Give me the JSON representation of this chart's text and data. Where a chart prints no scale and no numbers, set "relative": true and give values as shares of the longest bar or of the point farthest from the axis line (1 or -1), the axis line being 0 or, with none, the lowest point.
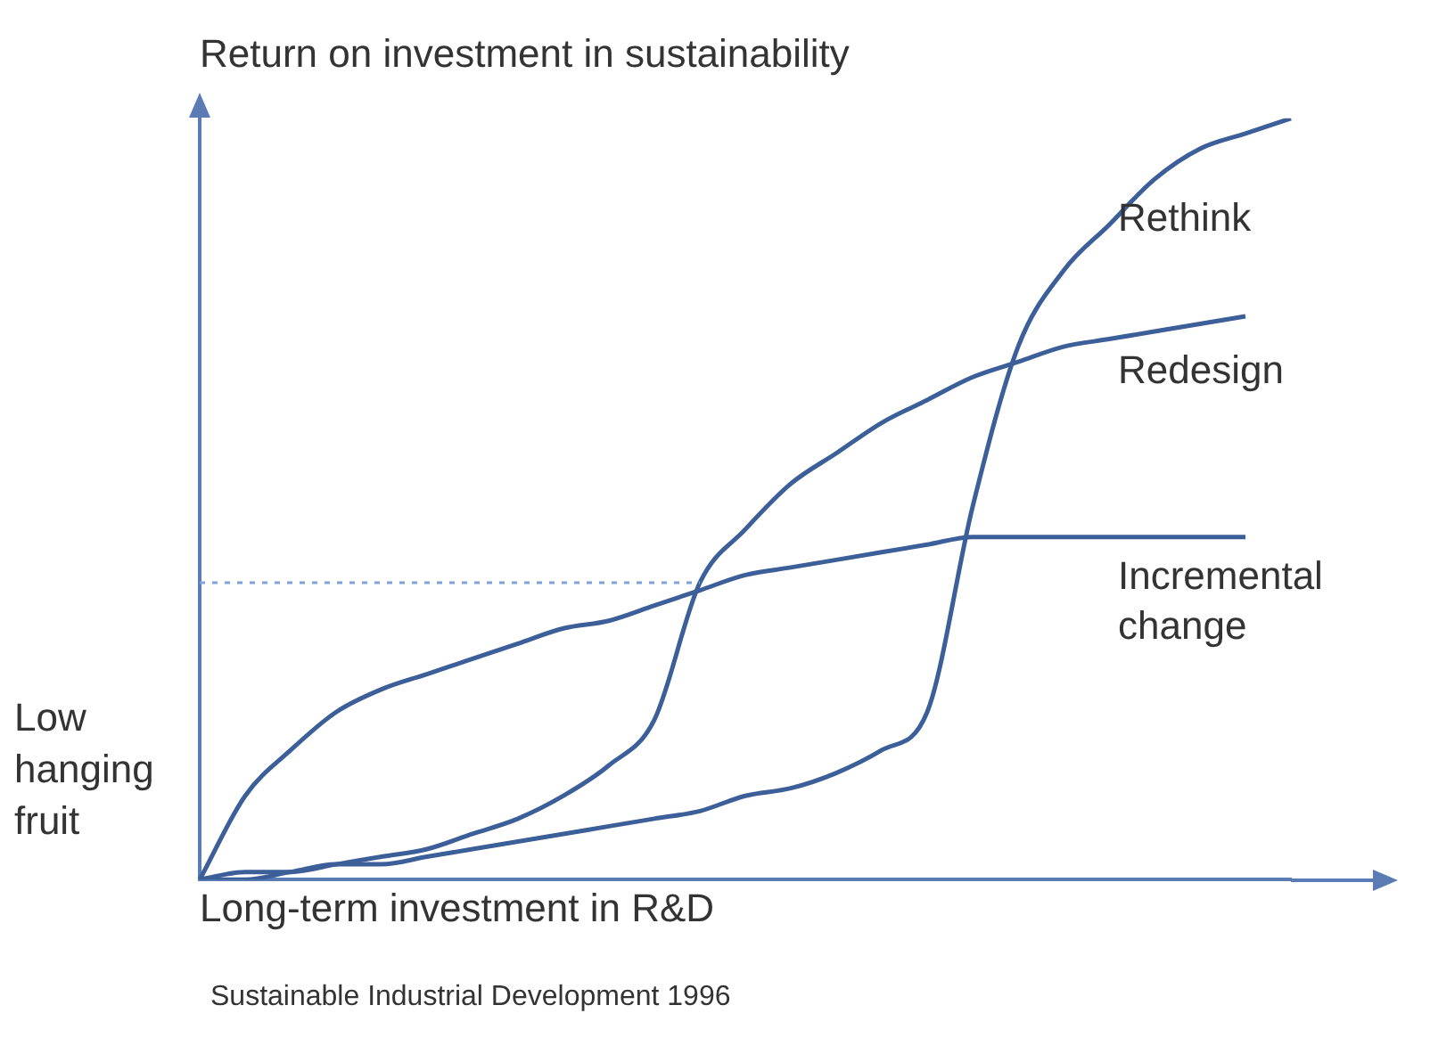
{
  "chart_data": {
    "type": "line",
    "relative": true,
    "title": "Return on investment in sustainability",
    "xlabel": "Long-term investment in R&D",
    "categories": [
      null,
      null,
      null,
      null,
      null,
      null,
      null,
      null,
      null,
      null,
      null,
      null,
      null,
      null,
      null,
      null,
      null,
      null,
      null,
      null,
      null,
      null,
      null,
      null,
      null
    ],
    "series": [
      {
        "name": "Rethink",
        "color": "#3d5f99",
        "values": [
          0,
          0,
          0.01,
          0.02,
          0.02,
          0.03,
          0.04,
          0.05,
          0.06,
          0.07,
          0.08,
          0.09,
          0.11,
          0.12,
          0.14,
          0.17,
          0.22,
          0.49,
          0.7,
          0.8,
          0.86,
          0.92,
          0.96,
          0.98,
          1
        ]
      },
      {
        "name": "Redesign",
        "color": "#3d5f99",
        "values": [
          0,
          0.01,
          0.01,
          0.02,
          0.03,
          0.04,
          0.06,
          0.08,
          0.11,
          0.15,
          0.21,
          0.39,
          0.46,
          0.52,
          0.56,
          0.6,
          0.63,
          0.66,
          0.68,
          0.7,
          0.71,
          0.72,
          0.73,
          0.74,
          null
        ]
      },
      {
        "name": "Incremental change",
        "color": "#3d5f99",
        "values": [
          0,
          0.11,
          0.17,
          0.22,
          0.25,
          0.27,
          0.29,
          0.31,
          0.33,
          0.34,
          0.36,
          0.38,
          0.4,
          0.41,
          0.42,
          0.43,
          0.44,
          0.45,
          0.45,
          0.45,
          0.45,
          0.45,
          0.45,
          0.45,
          null
        ]
      }
    ],
    "ref_lines": [
      {
        "axis": "y",
        "value": 0.39,
        "color": "#7fa3d6",
        "line_style": "dotted"
      }
    ],
    "annotations": [
      "Low hanging fruit",
      "Sustainable Industrial Development 1996"
    ],
    "grid": false,
    "legend": false,
    "marker": "none",
    "line_style": "solid"
  }
}
